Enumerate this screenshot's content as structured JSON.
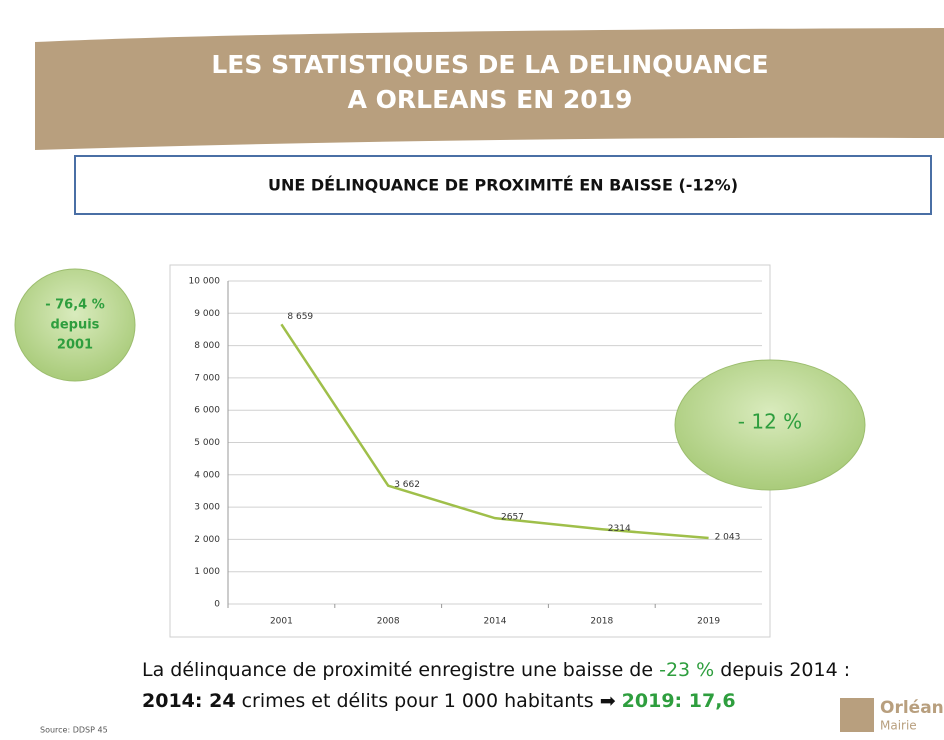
{
  "header": {
    "title_line1": "LES STATISTIQUES DE LA DELINQUANCE",
    "title_line2": "A ORLEANS EN 2019"
  },
  "subtitle": "UNE DÉLINQUANCE DE PROXIMITÉ EN BAISSE (-12%)",
  "badges": {
    "left": [
      "- 76,4 %",
      "depuis",
      "2001"
    ],
    "right": "- 12 %"
  },
  "chart_data": {
    "type": "line",
    "categories": [
      "2001",
      "2008",
      "2014",
      "2018",
      "2019"
    ],
    "values": [
      8659,
      3662,
      2657,
      2314,
      2043
    ],
    "value_labels": [
      "8 659",
      "3 662",
      "2657",
      "2314",
      "2 043"
    ],
    "color": "#9fbf4a",
    "ylim": [
      0,
      10000
    ],
    "yticks": [
      0,
      {
        "value": 1000,
        "label": "1 000"
      },
      {
        "value": 2000,
        "label": "2 000"
      },
      {
        "value": 3000,
        "label": "3 000"
      },
      {
        "value": 4000,
        "label": "4 000"
      },
      {
        "value": 5000,
        "label": "5 000"
      },
      {
        "value": 6000,
        "label": "6 000"
      },
      {
        "value": 7000,
        "label": "7 000"
      },
      {
        "value": 8000,
        "label": "8 000"
      },
      {
        "value": 9000,
        "label": "9 000"
      },
      {
        "value": 10000,
        "label": "10 000"
      }
    ],
    "grid": true
  },
  "footer": {
    "line1": [
      "La délinquance de proximité enregistre une baisse de ",
      "-23 %",
      " depuis 2014 :"
    ],
    "line2": [
      "2014: 24",
      " crimes et délits pour 1 000 habitants ➡ ",
      "2019: 17,6"
    ]
  },
  "source": "Source: DDSP 45",
  "logo": {
    "name": "Orléans",
    "sub": "Mairie"
  }
}
